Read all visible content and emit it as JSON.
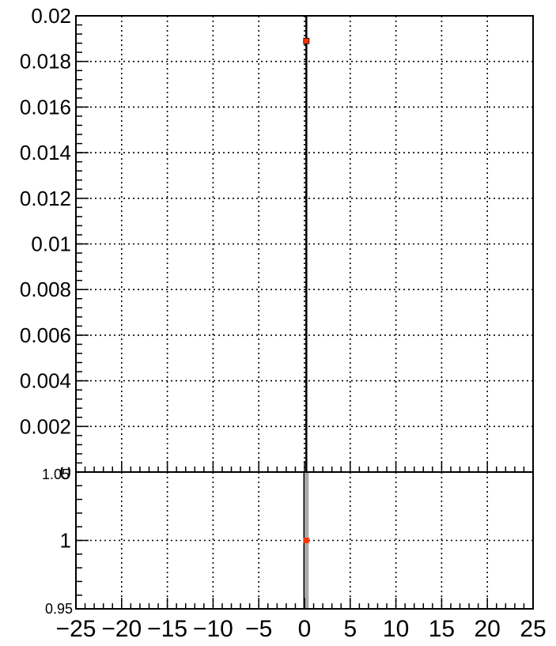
{
  "chart_data": [
    {
      "type": "scatter",
      "panel": "top",
      "x": [
        0.2
      ],
      "values": [
        0.0189
      ],
      "xlim": [
        -25,
        25
      ],
      "ylim": [
        0,
        0.02
      ],
      "yticks": [
        "0",
        "0.002",
        "0.004",
        "0.006",
        "0.008",
        "0.01",
        "0.012",
        "0.014",
        "0.016",
        "0.018",
        "0.02"
      ],
      "grid": true,
      "marker_color": "#ff3300",
      "line_color": "#000000"
    },
    {
      "type": "scatter",
      "panel": "ratio",
      "x": [
        0.2
      ],
      "values": [
        1.0
      ],
      "xlim": [
        -25,
        25
      ],
      "ylim": [
        0.95,
        1.05
      ],
      "yticks": [
        "0.95",
        "1",
        "1.05"
      ],
      "xticks": [
        "−25",
        "−20",
        "−15",
        "−10",
        "−5",
        "0",
        "5",
        "10",
        "15",
        "20",
        "25"
      ],
      "grid": true,
      "marker_color": "#ff3300",
      "band_color": "#aaaaaa"
    }
  ]
}
